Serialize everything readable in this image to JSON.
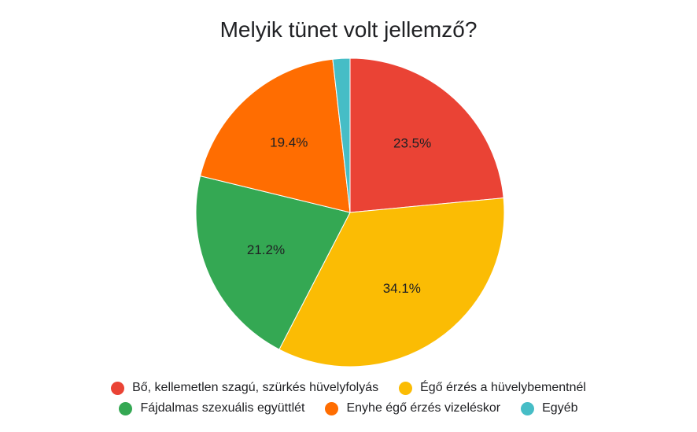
{
  "chart_data": {
    "type": "pie",
    "title": "Melyik tünet volt jellemző?",
    "start_angle_deg": 0,
    "direction": "clockwise",
    "legend_position": "bottom",
    "slices": [
      {
        "name": "Bő, kellemetlen szagú, szürkés hüvelyfolyás",
        "value": 23.5,
        "label": "23.5%",
        "color": "#EA4335"
      },
      {
        "name": "Égő érzés a hüvelybementnél",
        "value": 34.1,
        "label": "34.1%",
        "color": "#FBBC04"
      },
      {
        "name": "Fájdalmas szexuális együttlét",
        "value": 21.2,
        "label": "21.2%",
        "color": "#34A853"
      },
      {
        "name": "Enyhe égő érzés vizeléskor",
        "value": 19.4,
        "label": "19.4%",
        "color": "#FF6D01"
      },
      {
        "name": "Egyéb",
        "value": 1.8,
        "label": "",
        "color": "#46BDC6"
      }
    ],
    "legend_rows": [
      [
        0,
        1
      ],
      [
        2,
        3,
        4
      ]
    ]
  }
}
